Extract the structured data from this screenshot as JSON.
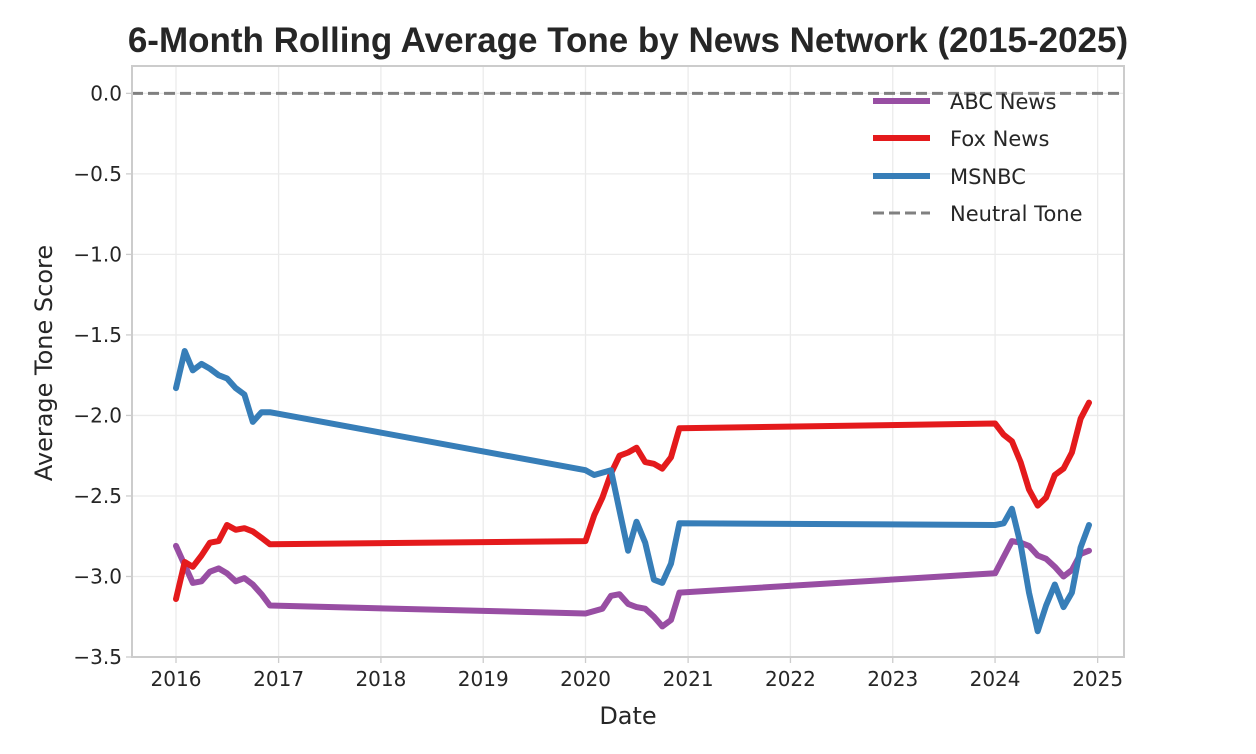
{
  "chart_data": {
    "type": "line",
    "title": "6-Month Rolling Average Tone by News Network (2015-2025)",
    "xlabel": "Date",
    "ylabel": "Average Tone Score",
    "xlim": [
      "2015-07-28",
      "2025-04-05"
    ],
    "ylim": [
      -3.5,
      0.17
    ],
    "x_ticks": [
      "2016",
      "2017",
      "2018",
      "2019",
      "2020",
      "2021",
      "2022",
      "2023",
      "2024",
      "2025"
    ],
    "y_ticks": [
      0.0,
      -0.5,
      -1.0,
      -1.5,
      -2.0,
      -2.5,
      -3.0,
      -3.5
    ],
    "y_tick_labels": [
      "0.0",
      "−0.5",
      "−1.0",
      "−1.5",
      "−2.0",
      "−2.5",
      "−3.0",
      "−3.5"
    ],
    "grid": true,
    "legend_position": "top-right",
    "reference_line": {
      "name": "Neutral Tone",
      "y": 0.0,
      "color": "#808080",
      "style": "dashed"
    },
    "series": [
      {
        "name": "ABC News",
        "color": "#984ea3",
        "points": [
          [
            "2016-01-01",
            -2.81
          ],
          [
            "2016-02-01",
            -2.93
          ],
          [
            "2016-03-01",
            -3.04
          ],
          [
            "2016-04-01",
            -3.03
          ],
          [
            "2016-05-01",
            -2.97
          ],
          [
            "2016-06-01",
            -2.95
          ],
          [
            "2016-07-01",
            -2.98
          ],
          [
            "2016-08-01",
            -3.03
          ],
          [
            "2016-09-01",
            -3.01
          ],
          [
            "2016-10-01",
            -3.05
          ],
          [
            "2016-11-01",
            -3.11
          ],
          [
            "2016-12-01",
            -3.18
          ],
          [
            "2020-01-01",
            -3.23
          ],
          [
            "2020-03-01",
            -3.2
          ],
          [
            "2020-04-01",
            -3.12
          ],
          [
            "2020-05-01",
            -3.11
          ],
          [
            "2020-06-01",
            -3.17
          ],
          [
            "2020-07-01",
            -3.19
          ],
          [
            "2020-08-01",
            -3.2
          ],
          [
            "2020-09-01",
            -3.25
          ],
          [
            "2020-10-01",
            -3.31
          ],
          [
            "2020-11-01",
            -3.27
          ],
          [
            "2020-12-01",
            -3.1
          ],
          [
            "2024-01-01",
            -2.98
          ],
          [
            "2024-03-01",
            -2.78
          ],
          [
            "2024-04-01",
            -2.79
          ],
          [
            "2024-05-01",
            -2.81
          ],
          [
            "2024-06-01",
            -2.87
          ],
          [
            "2024-07-01",
            -2.89
          ],
          [
            "2024-08-01",
            -2.94
          ],
          [
            "2024-09-01",
            -3.0
          ],
          [
            "2024-10-01",
            -2.96
          ],
          [
            "2024-11-01",
            -2.86
          ],
          [
            "2024-12-01",
            -2.84
          ]
        ]
      },
      {
        "name": "Fox News",
        "color": "#e41a1c",
        "points": [
          [
            "2016-01-01",
            -3.14
          ],
          [
            "2016-02-01",
            -2.91
          ],
          [
            "2016-03-01",
            -2.94
          ],
          [
            "2016-04-01",
            -2.87
          ],
          [
            "2016-05-01",
            -2.79
          ],
          [
            "2016-06-01",
            -2.78
          ],
          [
            "2016-07-01",
            -2.68
          ],
          [
            "2016-08-01",
            -2.71
          ],
          [
            "2016-09-01",
            -2.7
          ],
          [
            "2016-10-01",
            -2.72
          ],
          [
            "2016-11-01",
            -2.76
          ],
          [
            "2016-12-01",
            -2.8
          ],
          [
            "2020-01-01",
            -2.78
          ],
          [
            "2020-02-01",
            -2.62
          ],
          [
            "2020-03-01",
            -2.51
          ],
          [
            "2020-04-01",
            -2.36
          ],
          [
            "2020-05-01",
            -2.25
          ],
          [
            "2020-06-01",
            -2.23
          ],
          [
            "2020-07-01",
            -2.2
          ],
          [
            "2020-08-01",
            -2.29
          ],
          [
            "2020-09-01",
            -2.3
          ],
          [
            "2020-10-01",
            -2.33
          ],
          [
            "2020-11-01",
            -2.26
          ],
          [
            "2020-12-01",
            -2.08
          ],
          [
            "2024-01-01",
            -2.05
          ],
          [
            "2024-02-01",
            -2.12
          ],
          [
            "2024-03-01",
            -2.16
          ],
          [
            "2024-04-01",
            -2.29
          ],
          [
            "2024-05-01",
            -2.46
          ],
          [
            "2024-06-01",
            -2.56
          ],
          [
            "2024-07-01",
            -2.51
          ],
          [
            "2024-08-01",
            -2.37
          ],
          [
            "2024-09-01",
            -2.33
          ],
          [
            "2024-10-01",
            -2.23
          ],
          [
            "2024-11-01",
            -2.02
          ],
          [
            "2024-12-01",
            -1.92
          ]
        ]
      },
      {
        "name": "MSNBC",
        "color": "#377eb8",
        "points": [
          [
            "2016-01-01",
            -1.83
          ],
          [
            "2016-02-01",
            -1.6
          ],
          [
            "2016-03-01",
            -1.72
          ],
          [
            "2016-04-01",
            -1.68
          ],
          [
            "2016-05-01",
            -1.71
          ],
          [
            "2016-06-01",
            -1.75
          ],
          [
            "2016-07-01",
            -1.77
          ],
          [
            "2016-08-01",
            -1.83
          ],
          [
            "2016-09-01",
            -1.87
          ],
          [
            "2016-10-01",
            -2.04
          ],
          [
            "2016-11-01",
            -1.98
          ],
          [
            "2016-12-01",
            -1.98
          ],
          [
            "2020-01-01",
            -2.34
          ],
          [
            "2020-02-01",
            -2.37
          ],
          [
            "2020-04-01",
            -2.34
          ],
          [
            "2020-05-01",
            -2.59
          ],
          [
            "2020-06-01",
            -2.84
          ],
          [
            "2020-07-01",
            -2.66
          ],
          [
            "2020-08-01",
            -2.79
          ],
          [
            "2020-09-01",
            -3.02
          ],
          [
            "2020-10-01",
            -3.04
          ],
          [
            "2020-11-01",
            -2.92
          ],
          [
            "2020-12-01",
            -2.67
          ],
          [
            "2024-01-01",
            -2.68
          ],
          [
            "2024-02-01",
            -2.67
          ],
          [
            "2024-03-01",
            -2.58
          ],
          [
            "2024-04-01",
            -2.8
          ],
          [
            "2024-05-01",
            -3.1
          ],
          [
            "2024-06-01",
            -3.34
          ],
          [
            "2024-07-01",
            -3.18
          ],
          [
            "2024-08-01",
            -3.05
          ],
          [
            "2024-09-01",
            -3.19
          ],
          [
            "2024-10-01",
            -3.1
          ],
          [
            "2024-11-01",
            -2.82
          ],
          [
            "2024-12-01",
            -2.68
          ]
        ]
      }
    ]
  }
}
